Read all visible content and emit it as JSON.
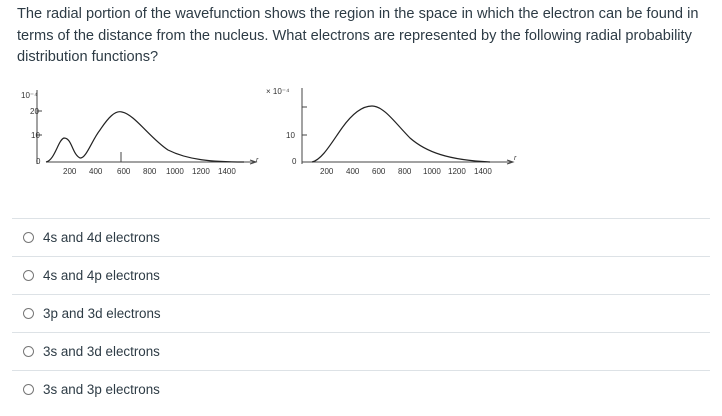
{
  "question": {
    "text": "The radial portion of the wavefunction shows the region in the space in which the electron can be found in terms of the distance from the nucleus. What electrons are represented by the following radial probability distribution functions?"
  },
  "plots": [
    {
      "scale_label": "10⁻⁴",
      "y_ticks": [
        "20",
        "10",
        "0"
      ],
      "x_ticks": [
        "200",
        "400",
        "600",
        "800",
        "1000",
        "1200",
        "1400"
      ],
      "axis_var": "r"
    },
    {
      "scale_label": "× 10⁻⁴",
      "y_ticks": [
        "10",
        "0"
      ],
      "x_ticks": [
        "200",
        "400",
        "600",
        "800",
        "1000",
        "1200",
        "1400"
      ],
      "axis_var": "r"
    }
  ],
  "options": [
    {
      "label": "4s and 4d electrons"
    },
    {
      "label": "4s and 4p electrons"
    },
    {
      "label": "3p and 3d electrons"
    },
    {
      "label": "3s and 3d electrons"
    },
    {
      "label": "3s and 3p electrons"
    }
  ]
}
